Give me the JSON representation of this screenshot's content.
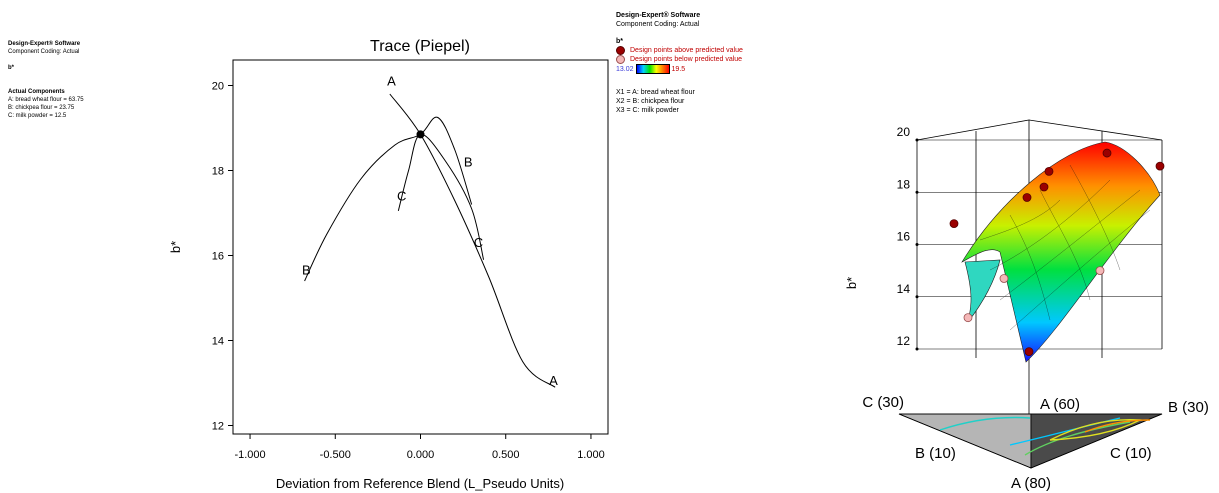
{
  "left_info": {
    "software": "Design-Expert® Software",
    "coding": "Component Coding: Actual",
    "response": "b*",
    "actual_heading": "Actual Components",
    "components": [
      "A: bread wheat flour = 63.75",
      "B: chickpea flour = 23.75",
      "C: milk powder = 12.5"
    ]
  },
  "right_info": {
    "software": "Design-Expert® Software",
    "coding": "Component Coding: Actual",
    "response": "b*",
    "above_label": "Design points above predicted value",
    "below_label": "Design points below predicted value",
    "colorbar_min": "13.02",
    "colorbar_max": "19.5",
    "factors": [
      "X1 = A: bread wheat flour",
      "X2 = B: chickpea flour",
      "X3 = C: milk powder"
    ],
    "colors": {
      "above": "#9a0000",
      "below": "#f4b8b8",
      "legend_text": "#c00000"
    }
  },
  "chart_data": [
    {
      "type": "line",
      "title": "Trace (Piepel)",
      "xlabel": "Deviation from Reference Blend (L_Pseudo Units)",
      "ylabel": "b*",
      "xlim": [
        -1.1,
        1.1
      ],
      "ylim": [
        11.8,
        20.6
      ],
      "xticks": [
        "-1.000",
        "-0.500",
        "0.000",
        "0.500",
        "1.000"
      ],
      "xtick_values": [
        -1,
        -0.5,
        0,
        0.5,
        1
      ],
      "yticks": [
        "12",
        "14",
        "16",
        "18",
        "20"
      ],
      "ytick_values": [
        12,
        14,
        16,
        18,
        20
      ],
      "reference_point": {
        "x": 0,
        "y": 18.85
      },
      "series": [
        {
          "name": "A",
          "points": [
            [
              -0.18,
              19.8
            ],
            [
              0,
              18.85
            ],
            [
              0.2,
              17.3
            ],
            [
              0.4,
              15.5
            ],
            [
              0.6,
              13.5
            ],
            [
              0.79,
              12.9
            ]
          ],
          "label_positions": [
            [
              -0.17,
              20.0
            ],
            [
              0.78,
              12.95
            ]
          ]
        },
        {
          "name": "B",
          "points": [
            [
              -0.68,
              15.4
            ],
            [
              -0.55,
              16.5
            ],
            [
              -0.35,
              17.8
            ],
            [
              -0.15,
              18.6
            ],
            [
              0,
              18.85
            ],
            [
              0.1,
              19.25
            ],
            [
              0.2,
              18.5
            ],
            [
              0.3,
              17.2
            ]
          ],
          "label_positions": [
            [
              -0.67,
              15.55
            ],
            [
              0.28,
              18.1
            ]
          ]
        },
        {
          "name": "C",
          "points": [
            [
              -0.13,
              17.05
            ],
            [
              -0.07,
              18.0
            ],
            [
              0,
              18.85
            ],
            [
              0.15,
              18.2
            ],
            [
              0.3,
              17.1
            ],
            [
              0.37,
              15.9
            ]
          ],
          "label_positions": [
            [
              -0.11,
              17.3
            ],
            [
              0.34,
              16.2
            ]
          ]
        }
      ]
    },
    {
      "type": "surface",
      "ylabel": "b*",
      "zticks": [
        "12",
        "14",
        "16",
        "18",
        "20"
      ],
      "zlim": [
        11,
        20
      ],
      "vertex_labels": [
        "C (30)",
        "A (60)",
        "B (30)",
        "B (10)",
        "C (10)",
        "A (80)"
      ],
      "design_points_above": [
        18.2,
        18.8,
        17.8,
        16.8,
        19.5,
        19.0,
        11.9
      ],
      "design_points_below": [
        13.2,
        14.7,
        15.0
      ]
    }
  ]
}
